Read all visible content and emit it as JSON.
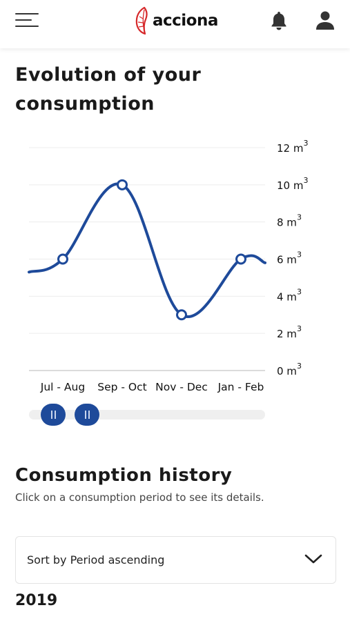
{
  "header": {
    "brand": "acciona",
    "icons": [
      "menu-icon",
      "bell-icon",
      "user-icon"
    ]
  },
  "evolution": {
    "title": "Evolution of your consumption"
  },
  "chart_data": {
    "type": "line",
    "categories": [
      "Jul - Aug",
      "Sep - Oct",
      "Nov - Dec",
      "Jan - Feb"
    ],
    "values": [
      6,
      10,
      3,
      6
    ],
    "y_unit": "m3",
    "y_ticks": [
      0,
      2,
      4,
      6,
      8,
      10,
      12
    ],
    "ylim": [
      0,
      12
    ],
    "grid": true,
    "color": "#1e4a9a"
  },
  "history": {
    "title": "Consumption history",
    "subtitle": "Click on a consumption period to see its details.",
    "sort_label": "Sort by Period ascending",
    "year": "2019"
  }
}
